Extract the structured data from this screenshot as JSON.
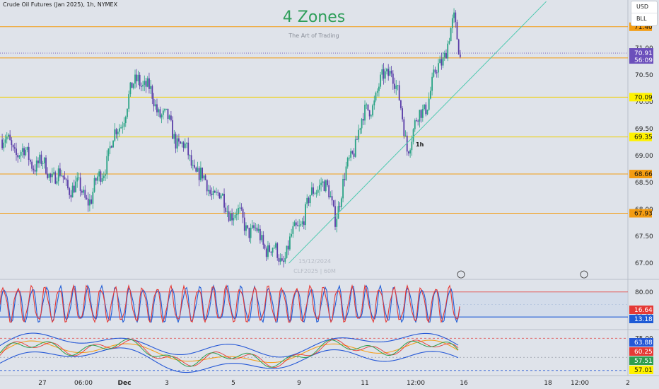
{
  "header": {
    "symbol_title": "Crude Oil Futures (Jan 2025), 1h, NYMEX",
    "watermark_title": "4 Zones",
    "watermark_subtitle": "The Art of Trading",
    "faded_date": "15/12/2024",
    "faded_ticker": "CLF2025 | 60M"
  },
  "menu": {
    "items": [
      "USD",
      "BLL"
    ]
  },
  "colors": {
    "bull": "#2aa385",
    "bear": "#5b3ea8",
    "orange": "#f39c12",
    "yellow": "#fff200",
    "trend": "#4ec9b0",
    "rsi_red": "#e53935",
    "rsi_blue": "#1e5bd6",
    "band_blue": "#2457d6",
    "band_orange": "#f4a020",
    "band_green": "#2e9e4f",
    "price_label": "#6b4fbb"
  },
  "chart_data": [
    {
      "type": "candlestick",
      "title": "Crude Oil Futures (Jan 2025), 1h, NYMEX",
      "ylim": [
        66.7,
        71.45
      ],
      "yticks": [
        "67.00",
        "67.50",
        "68.00",
        "68.50",
        "69.00",
        "69.50",
        "70.00",
        "70.50",
        "71.00"
      ],
      "xticks": [
        "27",
        "06:00",
        "Dec",
        "3",
        "5",
        "9",
        "11",
        "12:00",
        "16",
        "18",
        "12:00",
        "2"
      ],
      "zones": [
        {
          "value": 71.4,
          "label": "71.40",
          "style": "orange"
        },
        {
          "value": 70.82,
          "label": "70.82",
          "style": "orange"
        },
        {
          "value": 70.09,
          "label": "70.09",
          "style": "yellow"
        },
        {
          "value": 69.35,
          "label": "69.35",
          "style": "yellow"
        },
        {
          "value": 68.66,
          "label": "68.66",
          "style": "orange"
        },
        {
          "value": 67.93,
          "label": "67.93",
          "style": "orange"
        }
      ],
      "last_price": {
        "value": 70.91,
        "label": "70.91",
        "countdown": "56:09"
      },
      "trendline": {
        "label": "1h",
        "points": [
          [
            67.0,
            0.46
          ],
          [
            71.87,
            0.87
          ]
        ]
      },
      "key_points": [
        {
          "time": "27",
          "price": 69.3
        },
        {
          "time": "Dec",
          "price": 68.2
        },
        {
          "time": "3",
          "price": 70.5
        },
        {
          "time": "5",
          "price": 68.5
        },
        {
          "time": "9",
          "price": 67.05
        },
        {
          "time": "9-10",
          "price": 68.6
        },
        {
          "time": "10",
          "price": 67.9
        },
        {
          "time": "11",
          "price": 69.5
        },
        {
          "time": "11-12",
          "price": 70.7
        },
        {
          "time": "12:00",
          "price": 69.2
        },
        {
          "time": "12",
          "price": 70.05
        },
        {
          "time": "13",
          "price": 71.45
        },
        {
          "time": "13 close",
          "price": 70.91
        }
      ]
    },
    {
      "type": "line",
      "name": "stochastic RSI",
      "ylim": [
        0,
        100
      ],
      "levels": [
        {
          "value": 80,
          "label": "80.00"
        },
        {
          "value": 20,
          "label": "20.00"
        }
      ],
      "series": [
        {
          "name": "",
          "color": "rsi_red",
          "last": 16.64,
          "label": "16.64"
        },
        {
          "name": "",
          "color": "rsi_blue",
          "last": 13.18,
          "label": "13.18"
        }
      ],
      "cycles": 33
    },
    {
      "type": "line",
      "name": "band oscillator",
      "ylim": [
        50,
        80
      ],
      "levels": [
        {
          "value": 75,
          "label": "75.00"
        }
      ],
      "series": [
        {
          "name": "",
          "color": "band_blue",
          "last": 63.88,
          "label": "63.88"
        },
        {
          "name": "",
          "color": "band_orange",
          "last": 60.25,
          "label": "60.25"
        },
        {
          "name": "",
          "color": "band_green",
          "last": 57.51,
          "label": "57.51"
        },
        {
          "name": "",
          "color": "band_orange",
          "last": 57.01,
          "label": "57.01"
        }
      ]
    }
  ]
}
